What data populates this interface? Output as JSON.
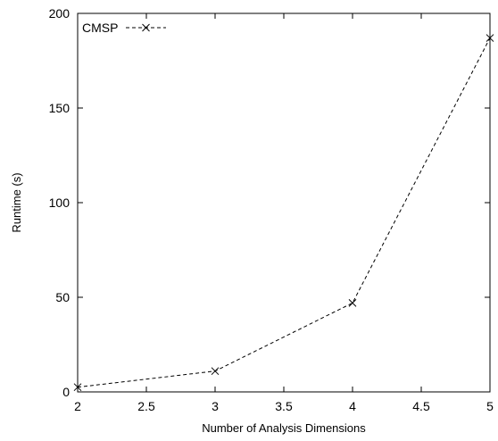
{
  "chart_data": {
    "type": "line",
    "title": "",
    "xlabel": "Number of Analysis Dimensions",
    "ylabel": "Runtime (s)",
    "xlim": [
      2,
      5
    ],
    "ylim": [
      0,
      200
    ],
    "x_ticks": [
      "2",
      "2.5",
      "3",
      "3.5",
      "4",
      "4.5",
      "5"
    ],
    "y_ticks": [
      "0",
      "50",
      "100",
      "150",
      "200"
    ],
    "grid": false,
    "legend_position": "top-left",
    "series": [
      {
        "name": "CMSP",
        "style": "dashed",
        "marker": "x",
        "color": "#000000",
        "x": [
          2,
          3,
          4,
          5
        ],
        "y": [
          2.5,
          11,
          47,
          187
        ]
      }
    ]
  }
}
